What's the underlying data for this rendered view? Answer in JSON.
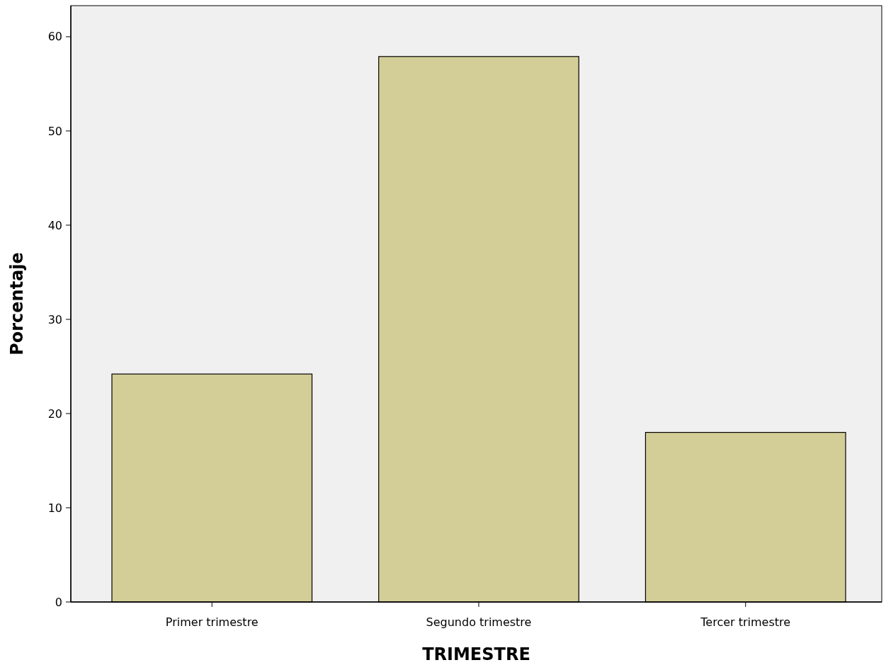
{
  "chart_data": {
    "type": "bar",
    "xlabel": "TRIMESTRE",
    "ylabel": "Porcentaje",
    "categories": [
      "Primer trimestre",
      "Segundo trimestre",
      "Tercer trimestre"
    ],
    "values": [
      24.2,
      57.9,
      18.0
    ],
    "color": "#d3ce97",
    "ylim": [
      0,
      63.3
    ],
    "yticks": [
      0,
      10,
      20,
      30,
      40,
      50,
      60
    ],
    "grid": false
  }
}
